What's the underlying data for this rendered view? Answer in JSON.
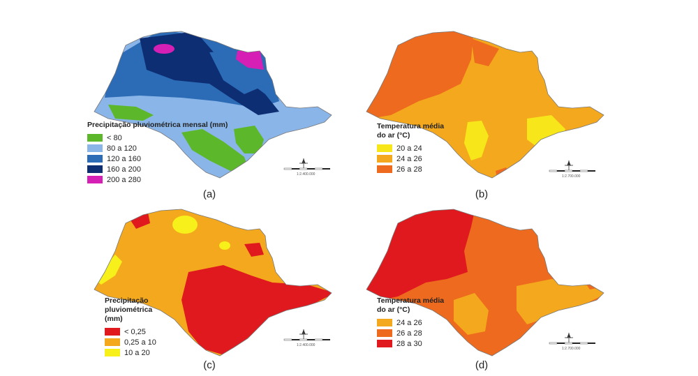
{
  "panels": [
    {
      "id": "a",
      "label": "(a)",
      "legend_title": "Precipitação pluviométrica mensal (mm)",
      "legend_items": [
        {
          "label": "< 80",
          "color": "#5cb82a"
        },
        {
          "label": "80 a 120",
          "color": "#8ab5e8"
        },
        {
          "label": "120 a 160",
          "color": "#2c6bb5"
        },
        {
          "label": "160 a 200",
          "color": "#0e2e73"
        },
        {
          "label": "200 a 280",
          "color": "#d61fb5"
        }
      ],
      "scale_text": "1:2.400.000"
    },
    {
      "id": "b",
      "label": "(b)",
      "legend_title": "Temperatura média do ar (°C)",
      "legend_items": [
        {
          "label": "20 a 24",
          "color": "#f7e61a"
        },
        {
          "label": "24 a 26",
          "color": "#f4a81d"
        },
        {
          "label": "26 a 28",
          "color": "#ee6a1e"
        }
      ],
      "scale_text": "1:2.700.000"
    },
    {
      "id": "c",
      "label": "(c)",
      "legend_title": "Precipitação pluviométrica (mm)",
      "legend_items": [
        {
          "label": "< 0,25",
          "color": "#e0191e"
        },
        {
          "label": "0,25 a 10",
          "color": "#f4a81d"
        },
        {
          "label": "10 a 20",
          "color": "#f7f01a"
        }
      ],
      "scale_text": "1:2.400.000"
    },
    {
      "id": "d",
      "label": "(d)",
      "legend_title": "Temperatura média do ar (°C)",
      "legend_items": [
        {
          "label": "24 a 26",
          "color": "#f4a81d"
        },
        {
          "label": "26 a 28",
          "color": "#ee6a1e"
        },
        {
          "label": "28 a 30",
          "color": "#e0191e"
        }
      ],
      "scale_text": "1:2.700.000"
    }
  ]
}
